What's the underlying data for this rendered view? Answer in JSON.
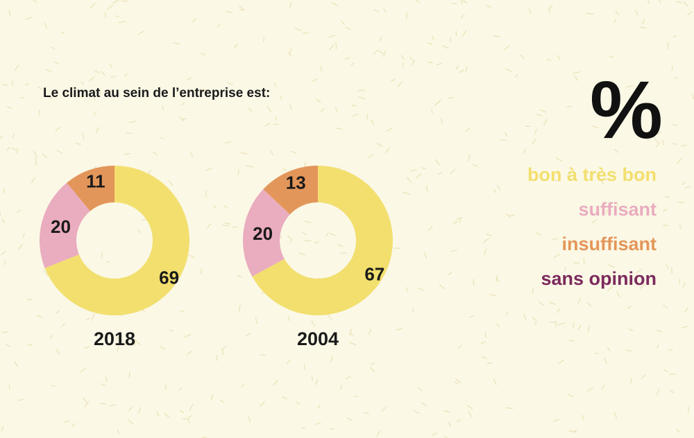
{
  "chart_data": {
    "type": "pie",
    "title": "Le climat au sein de l’entreprise est:",
    "unit": "%",
    "categories": [
      "bon à très bon",
      "suffisant",
      "insuffisant",
      "sans opinion"
    ],
    "colors": {
      "bon à très bon": "#f2df6e",
      "suffisant": "#eaacbf",
      "insuffisant": "#e3965a",
      "sans opinion": "#7b2a5c"
    },
    "charts": [
      {
        "year": "2018",
        "values": [
          69,
          20,
          11,
          0
        ],
        "labels": [
          "69",
          "20",
          "11",
          ""
        ]
      },
      {
        "year": "2004",
        "values": [
          67,
          20,
          13,
          0
        ],
        "labels": [
          "67",
          "20",
          "13",
          ""
        ]
      }
    ]
  }
}
